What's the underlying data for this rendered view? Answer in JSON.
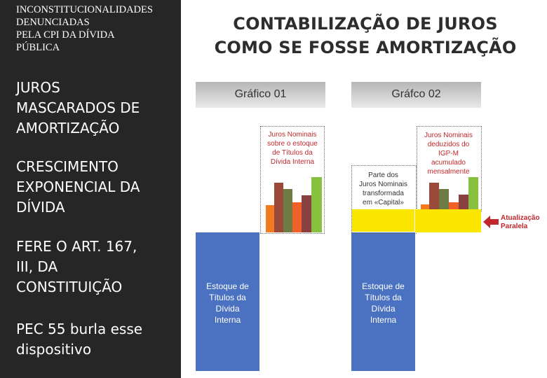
{
  "sidebar": {
    "header": "INCONSTITUCIONALIDADES\nDENUNCIADAS\n PELA CPI DA DÍVIDA\nPÚBLICA",
    "points": [
      "JUROS\nMASCARADOS DE\nAMORTIZAÇÃO",
      "CRESCIMENTO\nEXPONENCIAL DA\nDÍVIDA",
      "FERE O ART. 167,\nIII, DA\nCONSTITUIÇÃO",
      "PEC 55 burla esse\ndispositivo"
    ]
  },
  "main_title": "CONTABILIZAÇÃO DE JUROS\nCOMO SE FOSSE AMORTIZAÇÃO",
  "graph1": {
    "title": "Gráfico 01",
    "stock_label": "Estoque de\nTítulos da\nDívida\nInterna",
    "note": "Juros Nominais\nsobre o estoque\nde Títulos da\nDívida Interna"
  },
  "graph2": {
    "title": "Gráfco 02",
    "stock_label": "Estoque de\nTítulos da\nDívida\nInterna",
    "note_left": "Parte dos\nJuros Nominais\ntransformada\nem «Capital»",
    "note_right": "Juros Nominais\ndeduzidos do\nIGP-M\nacumulado\nmensalmente",
    "arrow_label": "Atualização\nParalela"
  },
  "colors": {
    "stock": "#4a72c0",
    "yellow": "#fbe600",
    "bars": [
      "#f47a20",
      "#9a4a3a",
      "#6f7a45",
      "#f06028",
      "#8a4040",
      "#88c040"
    ],
    "accent_red": "#c0282c"
  }
}
